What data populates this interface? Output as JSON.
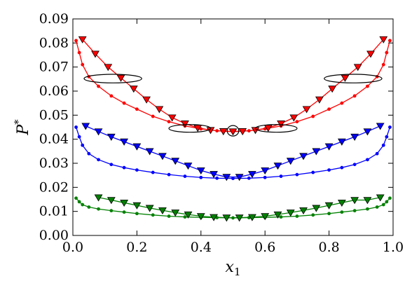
{
  "chart_data": {
    "type": "line",
    "xlabel": {
      "base": "x",
      "sub": "1"
    },
    "ylabel": {
      "base": "P",
      "sup": "*"
    },
    "xlim": [
      0.0,
      1.0
    ],
    "ylim": [
      0.0,
      0.09
    ],
    "xticks": [
      "0.0",
      "0.2",
      "0.4",
      "0.6",
      "0.8",
      "1.0"
    ],
    "yticks": [
      "0.00",
      "0.01",
      "0.02",
      "0.03",
      "0.04",
      "0.05",
      "0.06",
      "0.07",
      "0.08",
      "0.09"
    ],
    "grid": false,
    "series": [
      {
        "color": "#ff0000",
        "marker": "circle",
        "x": [
          0.01,
          0.02,
          0.03,
          0.05,
          0.08,
          0.12,
          0.16,
          0.2,
          0.25,
          0.3,
          0.35,
          0.4,
          0.45,
          0.5,
          0.55,
          0.6,
          0.65,
          0.7,
          0.75,
          0.8,
          0.84,
          0.88,
          0.92,
          0.95,
          0.97,
          0.98,
          0.99
        ],
        "y": [
          0.081,
          0.076,
          0.071,
          0.066,
          0.062,
          0.058,
          0.055,
          0.0525,
          0.0495,
          0.0473,
          0.0455,
          0.0443,
          0.0435,
          0.0432,
          0.0435,
          0.0443,
          0.0455,
          0.0473,
          0.0495,
          0.0525,
          0.055,
          0.058,
          0.062,
          0.066,
          0.071,
          0.076,
          0.081
        ]
      },
      {
        "color": "#ff0000",
        "marker": "triangle-down",
        "x": [
          0.03,
          0.07,
          0.11,
          0.15,
          0.19,
          0.23,
          0.27,
          0.31,
          0.35,
          0.39,
          0.43,
          0.47,
          0.5,
          0.53,
          0.57,
          0.61,
          0.65,
          0.69,
          0.73,
          0.77,
          0.81,
          0.85,
          0.89,
          0.93,
          0.97
        ],
        "y": [
          0.0815,
          0.0755,
          0.07,
          0.0655,
          0.061,
          0.0565,
          0.0525,
          0.049,
          0.0465,
          0.0447,
          0.0438,
          0.0433,
          0.0432,
          0.0433,
          0.0438,
          0.0447,
          0.0465,
          0.049,
          0.0525,
          0.0565,
          0.061,
          0.0655,
          0.07,
          0.0755,
          0.0815
        ]
      },
      {
        "color": "#0000ff",
        "marker": "circle",
        "x": [
          0.01,
          0.02,
          0.03,
          0.05,
          0.08,
          0.12,
          0.16,
          0.2,
          0.25,
          0.3,
          0.35,
          0.4,
          0.45,
          0.5,
          0.55,
          0.6,
          0.65,
          0.7,
          0.75,
          0.8,
          0.84,
          0.88,
          0.92,
          0.95,
          0.97,
          0.98,
          0.99
        ],
        "y": [
          0.045,
          0.041,
          0.0375,
          0.034,
          0.0315,
          0.0295,
          0.0282,
          0.0272,
          0.0262,
          0.0253,
          0.0246,
          0.0241,
          0.0238,
          0.0237,
          0.0238,
          0.0241,
          0.0246,
          0.0253,
          0.0262,
          0.0272,
          0.0282,
          0.0295,
          0.0315,
          0.034,
          0.0375,
          0.041,
          0.045
        ]
      },
      {
        "color": "#0000ff",
        "marker": "triangle-down",
        "x": [
          0.04,
          0.08,
          0.12,
          0.16,
          0.2,
          0.24,
          0.28,
          0.32,
          0.36,
          0.4,
          0.44,
          0.48,
          0.52,
          0.56,
          0.6,
          0.64,
          0.68,
          0.72,
          0.76,
          0.8,
          0.84,
          0.88,
          0.92,
          0.96
        ],
        "y": [
          0.0455,
          0.0432,
          0.041,
          0.039,
          0.037,
          0.035,
          0.033,
          0.031,
          0.029,
          0.027,
          0.0255,
          0.0243,
          0.0243,
          0.0255,
          0.027,
          0.029,
          0.031,
          0.033,
          0.035,
          0.037,
          0.039,
          0.041,
          0.0432,
          0.0455
        ]
      },
      {
        "color": "#008000",
        "marker": "circle",
        "x": [
          0.01,
          0.02,
          0.03,
          0.05,
          0.08,
          0.12,
          0.16,
          0.2,
          0.25,
          0.3,
          0.35,
          0.4,
          0.45,
          0.5,
          0.55,
          0.6,
          0.65,
          0.7,
          0.75,
          0.8,
          0.84,
          0.88,
          0.92,
          0.95,
          0.97,
          0.98,
          0.99
        ],
        "y": [
          0.0155,
          0.014,
          0.0128,
          0.0118,
          0.011,
          0.0103,
          0.0097,
          0.0091,
          0.0085,
          0.008,
          0.0077,
          0.0075,
          0.0074,
          0.0073,
          0.0074,
          0.0075,
          0.0077,
          0.008,
          0.0085,
          0.0091,
          0.0097,
          0.0103,
          0.011,
          0.0118,
          0.0128,
          0.014,
          0.0155
        ]
      },
      {
        "color": "#008000",
        "marker": "triangle-down",
        "x": [
          0.08,
          0.12,
          0.16,
          0.2,
          0.24,
          0.28,
          0.32,
          0.36,
          0.4,
          0.44,
          0.48,
          0.52,
          0.56,
          0.6,
          0.64,
          0.68,
          0.72,
          0.76,
          0.8,
          0.84,
          0.88,
          0.92,
          0.96
        ],
        "y": [
          0.0158,
          0.0147,
          0.0136,
          0.0125,
          0.0114,
          0.0104,
          0.0095,
          0.0087,
          0.008,
          0.0076,
          0.0074,
          0.0074,
          0.0076,
          0.008,
          0.0087,
          0.0095,
          0.0104,
          0.0114,
          0.0125,
          0.0136,
          0.0147,
          0.0147,
          0.0158
        ]
      }
    ],
    "annotations": [
      {
        "shape": "ellipse",
        "cx": 0.125,
        "cy": 0.0652,
        "rx": 0.09,
        "ry": 0.0018
      },
      {
        "shape": "ellipse",
        "cx": 0.875,
        "cy": 0.0652,
        "rx": 0.09,
        "ry": 0.0018
      },
      {
        "shape": "ellipse",
        "cx": 0.365,
        "cy": 0.0445,
        "rx": 0.065,
        "ry": 0.0016
      },
      {
        "shape": "ellipse",
        "cx": 0.635,
        "cy": 0.0445,
        "rx": 0.065,
        "ry": 0.0016
      },
      {
        "shape": "ellipse",
        "cx": 0.5,
        "cy": 0.0435,
        "rx": 0.018,
        "ry": 0.0022
      }
    ]
  }
}
